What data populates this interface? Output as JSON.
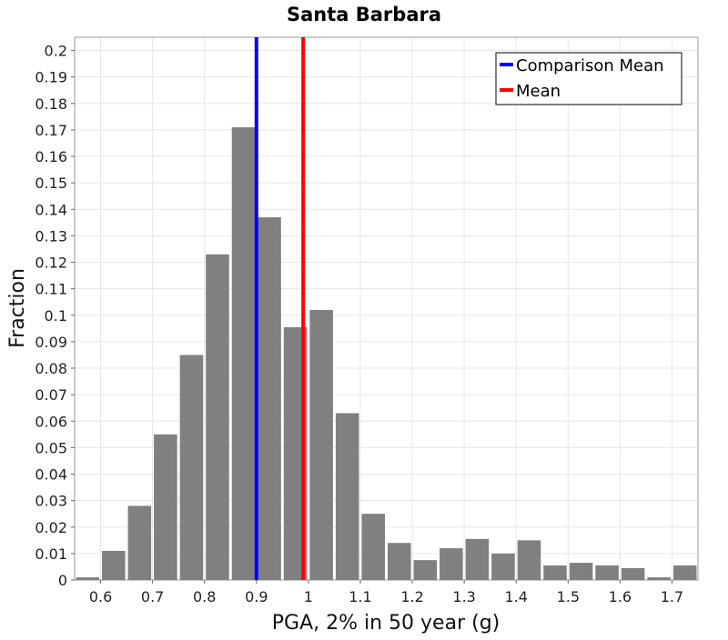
{
  "chart_data": {
    "type": "bar",
    "title": "Santa Barbara",
    "xlabel": "PGA, 2% in 50 year (g)",
    "ylabel": "Fraction",
    "xlim": [
      0.55,
      1.75
    ],
    "ylim": [
      0,
      0.205
    ],
    "grid": true,
    "bin_width": 0.05,
    "bin_centers": [
      0.575,
      0.625,
      0.675,
      0.725,
      0.775,
      0.825,
      0.875,
      0.925,
      0.975,
      1.025,
      1.075,
      1.125,
      1.175,
      1.225,
      1.275,
      1.325,
      1.375,
      1.425,
      1.475,
      1.525,
      1.575,
      1.625,
      1.675,
      1.725
    ],
    "values": [
      0.001,
      0.011,
      0.028,
      0.055,
      0.085,
      0.123,
      0.171,
      0.137,
      0.0955,
      0.102,
      0.063,
      0.025,
      0.014,
      0.0075,
      0.012,
      0.0155,
      0.01,
      0.015,
      0.0055,
      0.0065,
      0.0055,
      0.0045,
      0.001,
      0.0055
    ],
    "bar_color": "#808080",
    "x_ticks": [
      "0.6",
      "0.7",
      "0.8",
      "0.9",
      "1",
      "1.1",
      "1.2",
      "1.3",
      "1.4",
      "1.5",
      "1.6",
      "1.7"
    ],
    "x_tick_values": [
      0.6,
      0.7,
      0.8,
      0.9,
      1.0,
      1.1,
      1.2,
      1.3,
      1.4,
      1.5,
      1.6,
      1.7
    ],
    "y_ticks": [
      "0",
      "0.01",
      "0.02",
      "0.03",
      "0.04",
      "0.05",
      "0.06",
      "0.07",
      "0.08",
      "0.09",
      "0.1",
      "0.11",
      "0.12",
      "0.13",
      "0.14",
      "0.15",
      "0.16",
      "0.17",
      "0.18",
      "0.19",
      "0.2"
    ],
    "y_tick_values": [
      0,
      0.01,
      0.02,
      0.03,
      0.04,
      0.05,
      0.06,
      0.07,
      0.08,
      0.09,
      0.1,
      0.11,
      0.12,
      0.13,
      0.14,
      0.15,
      0.16,
      0.17,
      0.18,
      0.19,
      0.2
    ],
    "vertical_lines": [
      {
        "name": "Comparison Mean",
        "x": 0.9,
        "color": "#0000ff"
      },
      {
        "name": "Mean",
        "x": 0.99,
        "color": "#ff0000"
      }
    ],
    "legend": {
      "placement": "top-right",
      "entries": [
        {
          "label": "Comparison Mean",
          "color": "#0000ff"
        },
        {
          "label": "Mean",
          "color": "#ff0000"
        }
      ]
    }
  }
}
